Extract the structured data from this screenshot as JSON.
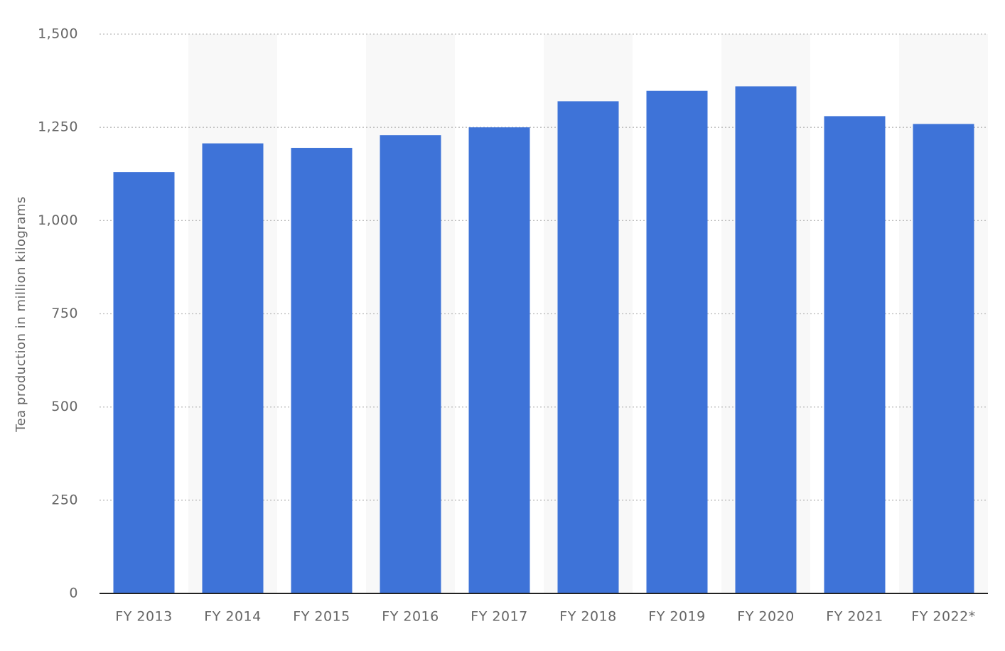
{
  "chart_data": {
    "type": "bar",
    "y_axis_label": "Tea production in million kilograms",
    "categories": [
      "FY 2013",
      "FY 2014",
      "FY 2015",
      "FY 2016",
      "FY 2017",
      "FY 2018",
      "FY 2019",
      "FY 2020",
      "FY 2021",
      "FY 2022*"
    ],
    "values": [
      1130,
      1207,
      1195,
      1229,
      1250,
      1320,
      1348,
      1360,
      1280,
      1259
    ],
    "color": "#3e73d8",
    "ylim": [
      0,
      1500
    ],
    "yticks": [
      0,
      250,
      500,
      750,
      {
        "value": 1000,
        "label": "1,000"
      },
      {
        "value": 1250,
        "label": "1,250"
      },
      {
        "value": 1500,
        "label": "1,500"
      }
    ],
    "grid": true
  }
}
